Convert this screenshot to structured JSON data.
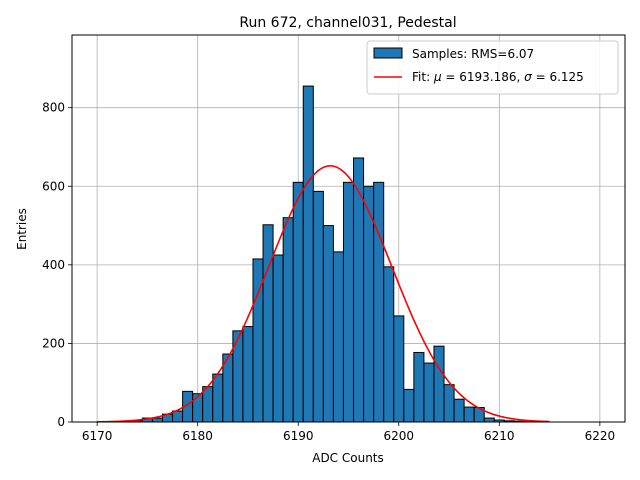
{
  "chart_data": {
    "type": "histogram",
    "title": "Run 672, channel031, Pedestal",
    "xlabel": "ADC Counts",
    "ylabel": "Entries",
    "xlim": [
      6167.5,
      6222.5
    ],
    "ylim": [
      0,
      985
    ],
    "xticks": [
      6170,
      6180,
      6190,
      6200,
      6210,
      6220
    ],
    "yticks": [
      0,
      200,
      400,
      600,
      800
    ],
    "grid": true,
    "legend_position": "top-right",
    "bin_width": 1,
    "bars": [
      {
        "x": 6174,
        "y": 3
      },
      {
        "x": 6175,
        "y": 10
      },
      {
        "x": 6176,
        "y": 10
      },
      {
        "x": 6177,
        "y": 20
      },
      {
        "x": 6178,
        "y": 28
      },
      {
        "x": 6179,
        "y": 78
      },
      {
        "x": 6180,
        "y": 72
      },
      {
        "x": 6181,
        "y": 90
      },
      {
        "x": 6182,
        "y": 122
      },
      {
        "x": 6183,
        "y": 173
      },
      {
        "x": 6184,
        "y": 232
      },
      {
        "x": 6185,
        "y": 243
      },
      {
        "x": 6186,
        "y": 415
      },
      {
        "x": 6187,
        "y": 502
      },
      {
        "x": 6188,
        "y": 425
      },
      {
        "x": 6189,
        "y": 520
      },
      {
        "x": 6190,
        "y": 610
      },
      {
        "x": 6191,
        "y": 855
      },
      {
        "x": 6192,
        "y": 587
      },
      {
        "x": 6193,
        "y": 500
      },
      {
        "x": 6194,
        "y": 433
      },
      {
        "x": 6195,
        "y": 610
      },
      {
        "x": 6196,
        "y": 672
      },
      {
        "x": 6197,
        "y": 600
      },
      {
        "x": 6198,
        "y": 610
      },
      {
        "x": 6199,
        "y": 395
      },
      {
        "x": 6200,
        "y": 270
      },
      {
        "x": 6201,
        "y": 83
      },
      {
        "x": 6202,
        "y": 177
      },
      {
        "x": 6203,
        "y": 150
      },
      {
        "x": 6204,
        "y": 193
      },
      {
        "x": 6205,
        "y": 95
      },
      {
        "x": 6206,
        "y": 58
      },
      {
        "x": 6207,
        "y": 38
      },
      {
        "x": 6208,
        "y": 37
      },
      {
        "x": 6209,
        "y": 10
      },
      {
        "x": 6210,
        "y": 5
      },
      {
        "x": 6211,
        "y": 3
      },
      {
        "x": 6212,
        "y": 2
      },
      {
        "x": 6213,
        "y": 1
      }
    ],
    "bar_color": "#1f77b4",
    "bar_edge_color": "#000000",
    "fit": {
      "type": "gaussian",
      "mu": 6193.186,
      "sigma": 6.125,
      "peak": 652,
      "x_range": [
        6170,
        6215
      ],
      "color": "#ff0000"
    },
    "legend": [
      {
        "label": "Samples: RMS=6.07",
        "kind": "patch",
        "color": "#1f77b4"
      },
      {
        "label_prefix": "Fit: ",
        "mu_label": "μ",
        "mu_eq": " = 6193.186, ",
        "sigma_label": "σ",
        "sigma_eq": " = 6.125",
        "kind": "line",
        "color": "#ff0000"
      }
    ]
  }
}
